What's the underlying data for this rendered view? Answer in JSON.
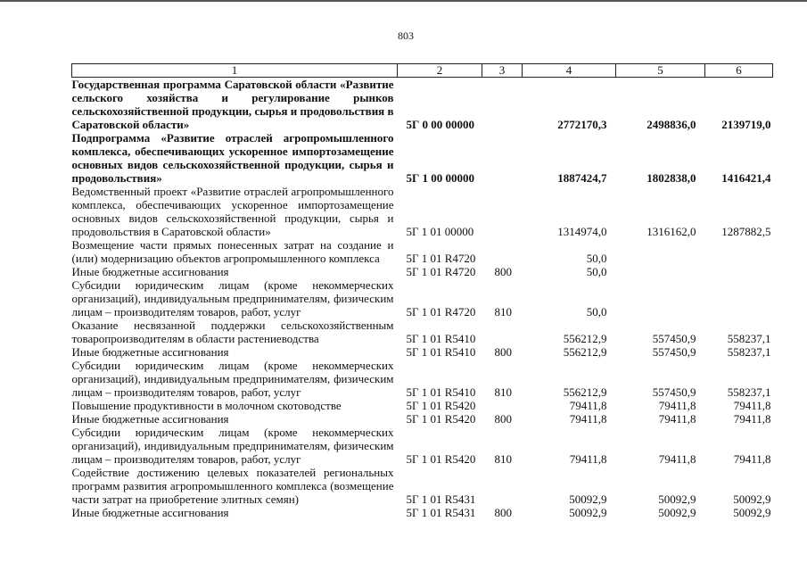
{
  "page_number": "803",
  "headers": [
    "1",
    "2",
    "3",
    "4",
    "5",
    "6"
  ],
  "rows": [
    {
      "bold": true,
      "name": "Государственная программа Саратовской области «Развитие сельского хозяйства и регулирование рынков сельскохозяйственной продукции, сырья и продовольствия в Саратовской области»",
      "code": "5Г 0 00 00000",
      "type": "",
      "v4": "2772170,3",
      "v5": "2498836,0",
      "v6": "2139719,0"
    },
    {
      "bold": true,
      "name": "Подпрограмма «Развитие отраслей агропромышленного комплекса, обеспечивающих ускоренное импортозамещение основных видов сельскохозяйственной продукции, сырья и продовольствия»",
      "code": "5Г 1 00 00000",
      "type": "",
      "v4": "1887424,7",
      "v5": "1802838,0",
      "v6": "1416421,4"
    },
    {
      "bold": false,
      "name": "Ведомственный проект «Развитие отраслей агропромышленного комплекса, обеспечивающих ускоренное импортозамещение основных видов сельскохозяйственной продукции, сырья и продовольствия в Саратовской области»",
      "code": "5Г 1 01 00000",
      "type": "",
      "v4": "1314974,0",
      "v5": "1316162,0",
      "v6": "1287882,5"
    },
    {
      "bold": false,
      "name": "Возмещение части прямых понесенных затрат на создание и (или) модернизацию объектов агропромышленного комплекса",
      "code": "5Г 1 01 R4720",
      "type": "",
      "v4": "50,0",
      "v5": "",
      "v6": ""
    },
    {
      "bold": false,
      "name": "Иные бюджетные ассигнования",
      "code": "5Г 1 01 R4720",
      "type": "800",
      "v4": "50,0",
      "v5": "",
      "v6": ""
    },
    {
      "bold": false,
      "name": "Субсидии юридическим лицам (кроме некоммерческих организаций), индивидуальным предпринимателям, физическим лицам – производителям товаров, работ, услуг",
      "code": "5Г 1 01 R4720",
      "type": "810",
      "v4": "50,0",
      "v5": "",
      "v6": ""
    },
    {
      "bold": false,
      "name": "Оказание несвязанной поддержки сельскохозяйственным товаропроизводителям в области растениеводства",
      "code": "5Г 1 01 R5410",
      "type": "",
      "v4": "556212,9",
      "v5": "557450,9",
      "v6": "558237,1"
    },
    {
      "bold": false,
      "name": "Иные бюджетные ассигнования",
      "code": "5Г 1 01 R5410",
      "type": "800",
      "v4": "556212,9",
      "v5": "557450,9",
      "v6": "558237,1"
    },
    {
      "bold": false,
      "name": "Субсидии юридическим лицам (кроме некоммерческих организаций), индивидуальным предпринимателям, физическим лицам – производителям товаров, работ, услуг",
      "code": "5Г 1 01 R5410",
      "type": "810",
      "v4": "556212,9",
      "v5": "557450,9",
      "v6": "558237,1"
    },
    {
      "bold": false,
      "name": "Повышение продуктивности в молочном скотоводстве",
      "code": "5Г 1 01 R5420",
      "type": "",
      "v4": "79411,8",
      "v5": "79411,8",
      "v6": "79411,8"
    },
    {
      "bold": false,
      "name": "Иные бюджетные ассигнования",
      "code": "5Г 1 01 R5420",
      "type": "800",
      "v4": "79411,8",
      "v5": "79411,8",
      "v6": "79411,8"
    },
    {
      "bold": false,
      "name": "Субсидии юридическим лицам (кроме некоммерческих организаций), индивидуальным предпринимателям, физическим лицам – производителям товаров, работ, услуг",
      "code": "5Г 1 01 R5420",
      "type": "810",
      "v4": "79411,8",
      "v5": "79411,8",
      "v6": "79411,8"
    },
    {
      "bold": false,
      "name": "Содействие достижению целевых показателей региональных программ развития агропромышленного комплекса (возмещение части затрат на приобретение элитных семян)",
      "code": "5Г 1 01 R5431",
      "type": "",
      "v4": "50092,9",
      "v5": "50092,9",
      "v6": "50092,9"
    },
    {
      "bold": false,
      "name": "Иные бюджетные ассигнования",
      "code": "5Г 1 01 R5431",
      "type": "800",
      "v4": "50092,9",
      "v5": "50092,9",
      "v6": "50092,9"
    }
  ]
}
